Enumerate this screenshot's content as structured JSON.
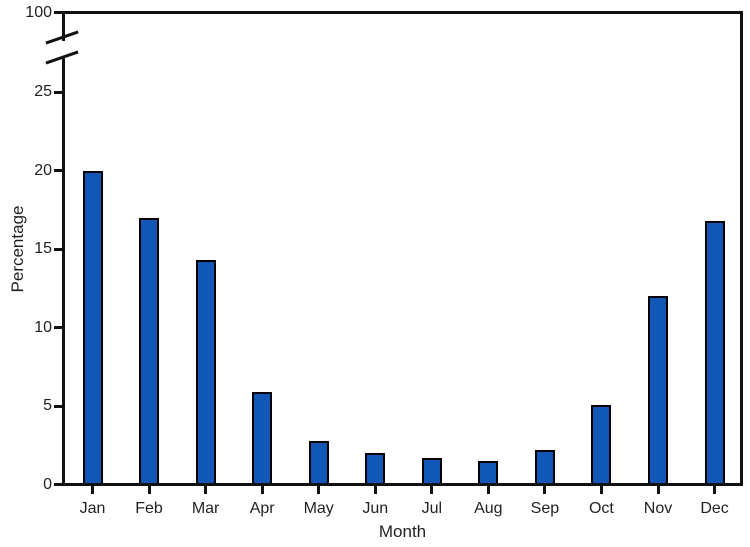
{
  "chart_data": {
    "type": "bar",
    "categories": [
      "Jan",
      "Feb",
      "Mar",
      "Apr",
      "May",
      "Jun",
      "Jul",
      "Aug",
      "Sep",
      "Oct",
      "Nov",
      "Dec"
    ],
    "values": [
      19.9,
      16.9,
      14.2,
      5.8,
      2.7,
      1.9,
      1.6,
      1.4,
      2.1,
      5.0,
      11.9,
      16.7
    ],
    "title": "",
    "xlabel": "Month",
    "ylabel": "Percentage",
    "yticks": [
      0,
      5,
      10,
      15,
      20,
      25
    ],
    "y_axis_break": {
      "between": [
        25,
        100
      ],
      "top_tick_label": "100"
    },
    "ylim": [
      0,
      100
    ],
    "grid": false,
    "legend": false,
    "bar_color": "#1157b5",
    "bar_border_color": "#000000",
    "axis_color": "#111111"
  }
}
